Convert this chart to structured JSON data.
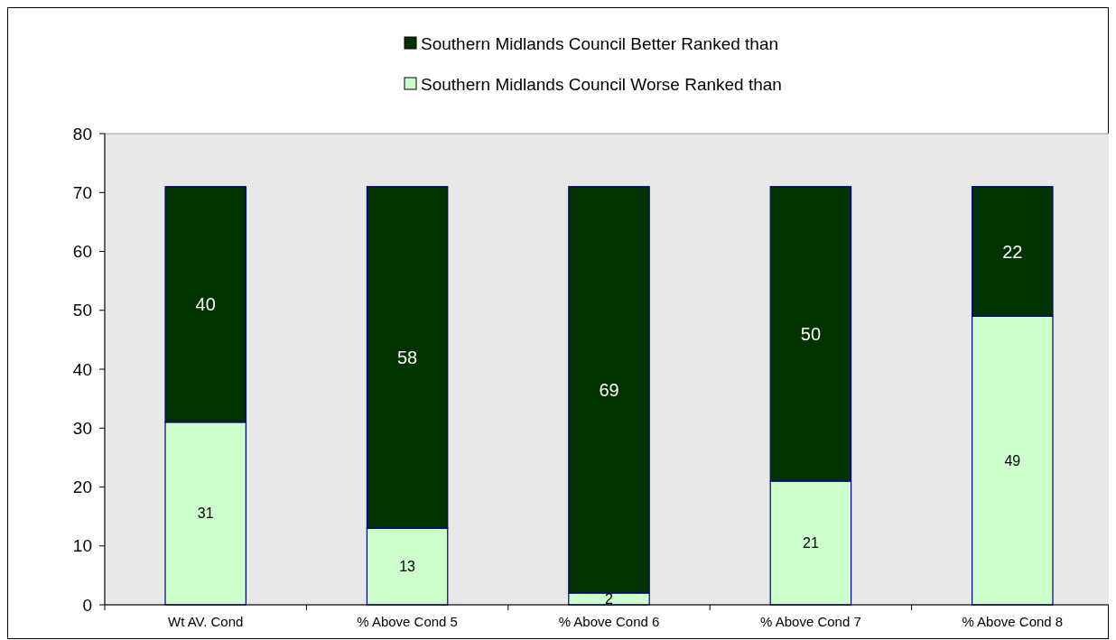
{
  "chart_data": {
    "type": "bar",
    "stacked": true,
    "categories": [
      "Wt AV. Cond",
      "% Above Cond 5",
      "% Above Cond 6",
      "% Above Cond 7",
      "% Above Cond 8"
    ],
    "series": [
      {
        "name": "Southern Midlands Council Worse Ranked than",
        "color": "#ccffcc",
        "values": [
          31,
          13,
          2,
          21,
          49
        ]
      },
      {
        "name": "Southern Midlands Council Better Ranked than",
        "color": "#003300",
        "values": [
          40,
          58,
          69,
          50,
          22
        ]
      }
    ],
    "ylim": [
      0,
      80
    ],
    "yticks": [
      0,
      10,
      20,
      30,
      40,
      50,
      60,
      70,
      80
    ],
    "grid": false,
    "legend": "top",
    "data_labels": true
  }
}
